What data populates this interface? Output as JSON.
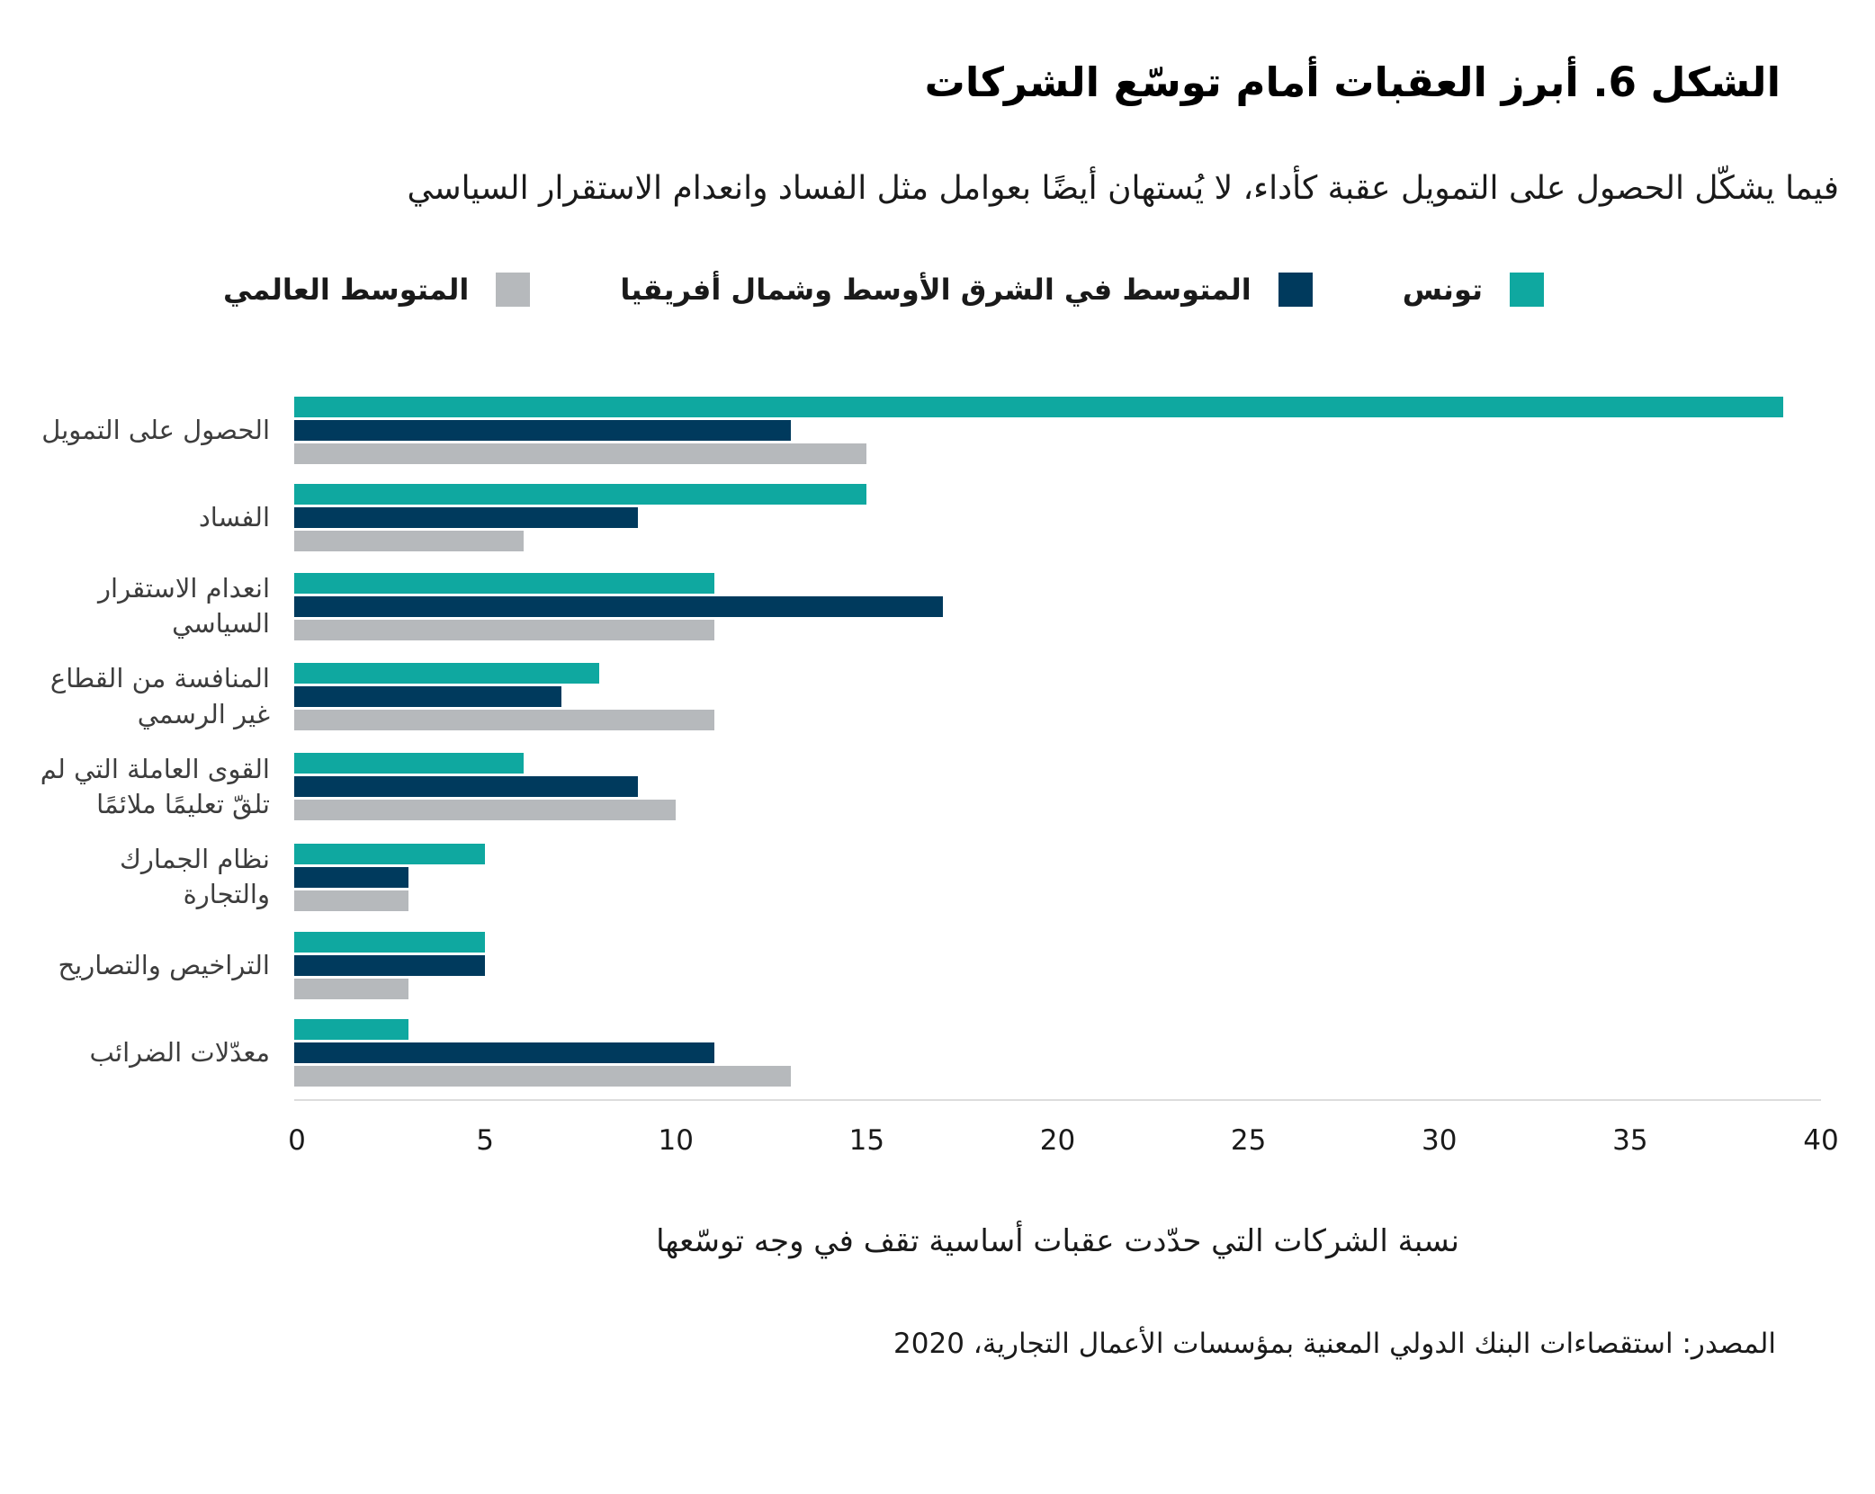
{
  "title": "الشكل 6. أبرز العقبات أمام توسّع الشركات",
  "subtitle": "فيما يشكّل الحصول على التمويل عقبة كأداء، لا يُستهان أيضًا بعوامل مثل الفساد وانعدام الاستقرار السياسي",
  "colors": {
    "tunisia": "#0fa8a0",
    "mena": "#003a5d",
    "world": "#b6b9bc",
    "axis_line": "#dcdcdc"
  },
  "legend": [
    {
      "label": "تونس",
      "color": "#0fa8a0"
    },
    {
      "label": "المتوسط في الشرق الأوسط وشمال أفريقيا",
      "color": "#003a5d"
    },
    {
      "label": "المتوسط العالمي",
      "color": "#b6b9bc"
    }
  ],
  "chart_data": {
    "type": "bar",
    "orientation": "horizontal",
    "title": "الشكل 6. أبرز العقبات أمام توسّع الشركات",
    "categories": [
      "الحصول على التمويل",
      "الفساد",
      "انعدام الاستقرار السياسي",
      "المنافسة من القطاع غير الرسمي",
      "القوى العاملة التي لم تلقّ تعليمًا ملائمًا",
      "نظام الجمارك والتجارة",
      "التراخيص والتصاريح",
      "معدّلات الضرائب"
    ],
    "series": [
      {
        "name": "تونس",
        "color": "#0fa8a0",
        "values": [
          39,
          15,
          11,
          8,
          6,
          5,
          5,
          3
        ]
      },
      {
        "name": "المتوسط في الشرق الأوسط وشمال أفريقيا",
        "color": "#003a5d",
        "values": [
          13,
          9,
          17,
          7,
          9,
          3,
          5,
          11
        ]
      },
      {
        "name": "المتوسط العالمي",
        "color": "#b6b9bc",
        "values": [
          15,
          6,
          11,
          11,
          10,
          3,
          3,
          13
        ]
      }
    ],
    "xlabel": "نسبة الشركات التي حدّدت عقبات أساسية تقف في وجه توسّعها",
    "xlim": [
      0,
      40
    ],
    "xticks": [
      0,
      5,
      10,
      15,
      20,
      25,
      30,
      35,
      40
    ],
    "grid": false,
    "legend_position": "top-center"
  },
  "source": "المصدر: استقصاءات البنك الدولي المعنية بمؤسسات الأعمال التجارية، 2020"
}
